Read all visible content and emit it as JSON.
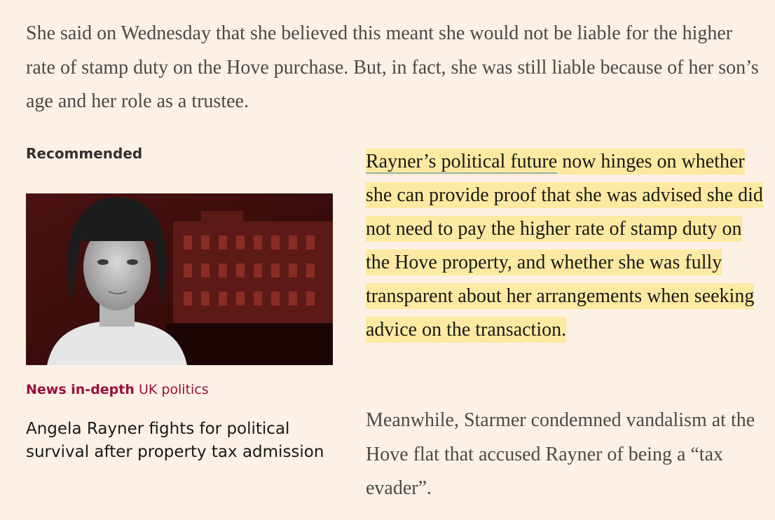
{
  "intro_paragraph": "She said on Wednesday that she believed this meant she would not be liable for the higher rate of stamp duty on the Hove purchase. But, in fact, she was still liable because of her son’s age and her role as a trustee.",
  "recommended": {
    "label": "Recommended",
    "image_icon": "portrait-photo-icon",
    "category_bold": "News in-depth",
    "category_topic": "UK politics",
    "headline": "Angela Rayner fights for political survival after property tax admission"
  },
  "highlight": {
    "link_text": "Rayner’s political future",
    "rest_text": " now hinges on whether she can provide proof that she was advised she did not need to pay the higher rate of stamp duty on the Hove property, and whether she was fully transparent about her arrangements when seeking advice on the transaction."
  },
  "meanwhile_paragraph": "Meanwhile, Starmer condemned vandalism at the Hove flat that accused Rayner of being a “tax evader”.",
  "colors": {
    "background": "#fdf1e5",
    "highlight": "#fdeaa2",
    "accent": "#990f3d"
  }
}
